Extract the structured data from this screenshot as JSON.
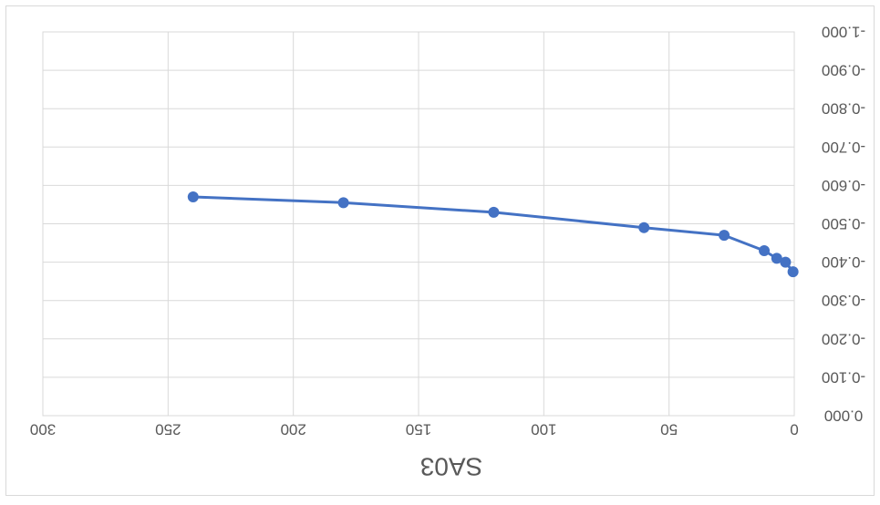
{
  "chart_data": {
    "type": "line",
    "title": "SA03",
    "rendered_rotated_180": true,
    "xlim": [
      0,
      300
    ],
    "ylim": [
      0,
      1
    ],
    "x_ticks": [
      0,
      50,
      100,
      150,
      200,
      250,
      300
    ],
    "x_tick_labels": [
      "0",
      "50",
      "100",
      "150",
      "200",
      "250",
      "300"
    ],
    "y_ticks": [
      0,
      0.1,
      0.2,
      0.3,
      0.4,
      0.5,
      0.6,
      0.7,
      0.8,
      0.9,
      1.0
    ],
    "y_tick_labels": [
      "0.000",
      "-0.100",
      "-0.200",
      "-0.300",
      "-0.400",
      "-0.500",
      "-0.600",
      "-0.700",
      "-0.800",
      "-0.900",
      "-1.000"
    ],
    "grid": true,
    "series": [
      {
        "color": "#4472c4",
        "x": [
          0.5,
          3.5,
          7,
          12,
          28,
          60,
          120,
          180,
          240
        ],
        "y": [
          0.375,
          0.4,
          0.41,
          0.43,
          0.47,
          0.49,
          0.53,
          0.555,
          0.57
        ]
      }
    ]
  }
}
